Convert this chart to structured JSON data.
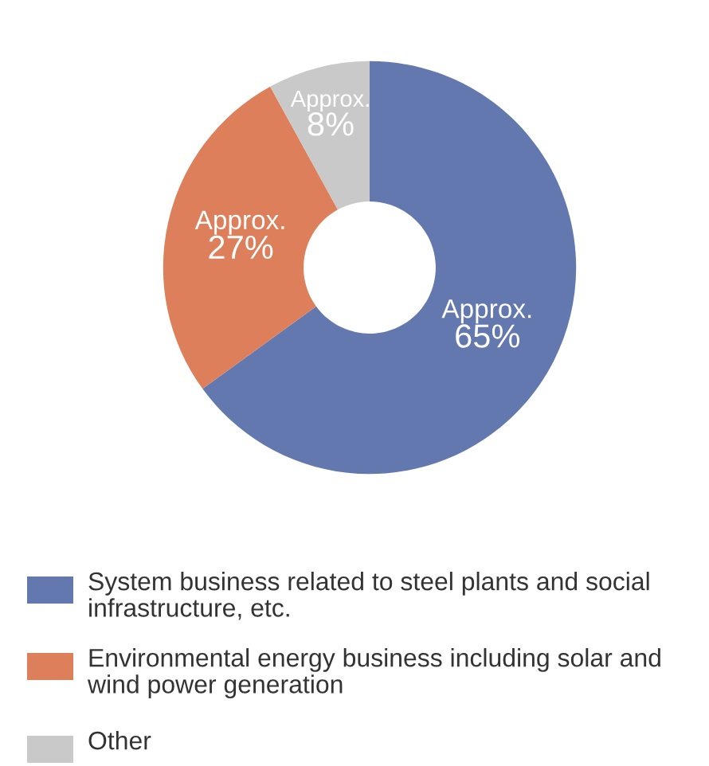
{
  "chart_data": {
    "type": "donut",
    "categories": [
      "System business related to steel plants and social infrastructure, etc.",
      "Environmental energy business including solar and wind power generation",
      "Other"
    ],
    "values": [
      65,
      27,
      8
    ],
    "colors": [
      "#6478b0",
      "#de7f5b",
      "#c9c9c9"
    ],
    "value_labels": [
      "Approx. 65%",
      "Approx. 27%",
      "Approx. 8%"
    ],
    "legend": "bottom"
  }
}
